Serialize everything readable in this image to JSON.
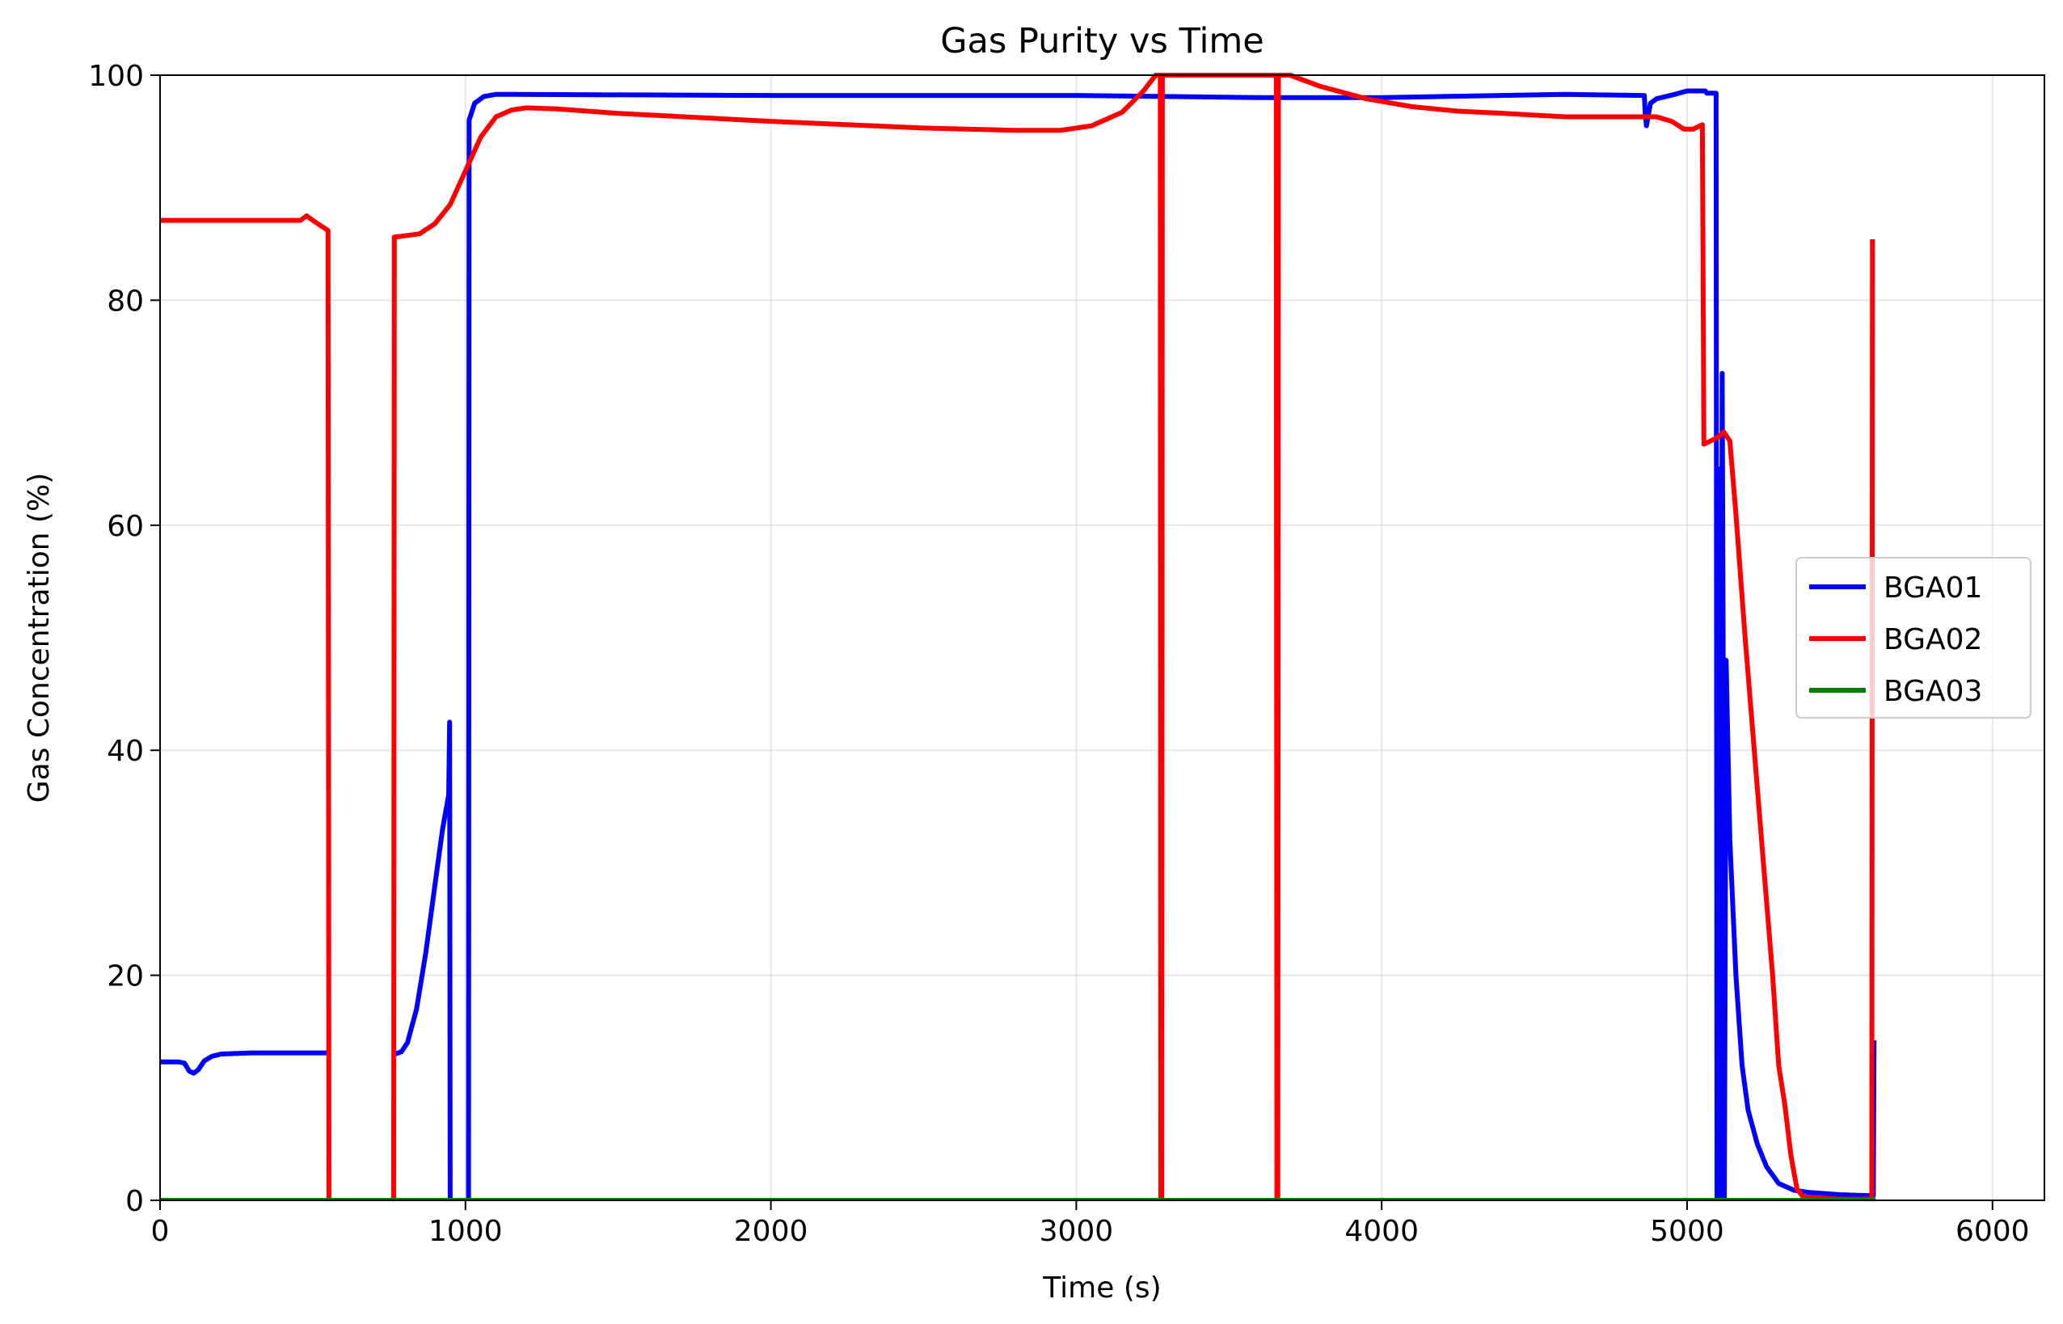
{
  "chart_data": {
    "type": "line",
    "title": "Gas Purity vs Time",
    "xlabel": "Time (s)",
    "ylabel": "Gas Concentration (%)",
    "xlim": [
      0,
      6170
    ],
    "ylim": [
      0,
      100
    ],
    "xticks": [
      0,
      1000,
      2000,
      3000,
      4000,
      5000,
      6000
    ],
    "yticks": [
      0,
      20,
      40,
      60,
      80,
      100
    ],
    "grid": true,
    "legend_position": "center-right",
    "series": [
      {
        "name": "BGA01",
        "color": "#0000ff",
        "points": [
          [
            0,
            12.3
          ],
          [
            60,
            12.3
          ],
          [
            80,
            12.2
          ],
          [
            95,
            11.5
          ],
          [
            110,
            11.3
          ],
          [
            125,
            11.6
          ],
          [
            145,
            12.4
          ],
          [
            170,
            12.8
          ],
          [
            200,
            13.0
          ],
          [
            300,
            13.1
          ],
          [
            400,
            13.1
          ],
          [
            500,
            13.1
          ],
          [
            550,
            13.1
          ],
          [
            555,
            null
          ],
          [
            765,
            null
          ],
          [
            770,
            13.0
          ],
          [
            790,
            13.2
          ],
          [
            810,
            14.0
          ],
          [
            840,
            17.0
          ],
          [
            870,
            22.0
          ],
          [
            900,
            28.0
          ],
          [
            925,
            33.0
          ],
          [
            945,
            36.0
          ],
          [
            948,
            42.5
          ],
          [
            950,
            0.0
          ],
          [
            1010,
            0.0
          ],
          [
            1012,
            96.0
          ],
          [
            1030,
            97.5
          ],
          [
            1060,
            98.1
          ],
          [
            1100,
            98.3
          ],
          [
            2000,
            98.2
          ],
          [
            3000,
            98.2
          ],
          [
            3300,
            98.1
          ],
          [
            3600,
            98.0
          ],
          [
            4000,
            98.0
          ],
          [
            4600,
            98.3
          ],
          [
            4860,
            98.2
          ],
          [
            4863,
            96.5
          ],
          [
            4867,
            95.5
          ],
          [
            4880,
            97.5
          ],
          [
            4900,
            97.9
          ],
          [
            4960,
            98.3
          ],
          [
            5000,
            98.6
          ],
          [
            5060,
            98.6
          ],
          [
            5065,
            98.4
          ],
          [
            5095,
            98.4
          ],
          [
            5098,
            0.0
          ],
          [
            5105,
            65.0
          ],
          [
            5110,
            0.0
          ],
          [
            5115,
            73.5
          ],
          [
            5118,
            50.0
          ],
          [
            5122,
            0.0
          ],
          [
            5128,
            48.0
          ],
          [
            5140,
            32.0
          ],
          [
            5160,
            20.0
          ],
          [
            5180,
            12.0
          ],
          [
            5200,
            8.0
          ],
          [
            5230,
            5.0
          ],
          [
            5260,
            3.0
          ],
          [
            5300,
            1.5
          ],
          [
            5350,
            0.9
          ],
          [
            5400,
            0.7
          ],
          [
            5500,
            0.5
          ],
          [
            5610,
            0.4
          ],
          [
            5612,
            14.0
          ]
        ]
      },
      {
        "name": "BGA02",
        "color": "#ff0000",
        "points": [
          [
            0,
            87.1
          ],
          [
            200,
            87.1
          ],
          [
            460,
            87.1
          ],
          [
            480,
            87.5
          ],
          [
            500,
            87.1
          ],
          [
            550,
            86.2
          ],
          [
            553,
            0.0
          ],
          [
            765,
            0.0
          ],
          [
            767,
            85.6
          ],
          [
            850,
            85.9
          ],
          [
            900,
            86.8
          ],
          [
            950,
            88.5
          ],
          [
            1000,
            91.5
          ],
          [
            1050,
            94.5
          ],
          [
            1100,
            96.3
          ],
          [
            1150,
            96.9
          ],
          [
            1200,
            97.1
          ],
          [
            1300,
            97.0
          ],
          [
            1500,
            96.6
          ],
          [
            2000,
            95.9
          ],
          [
            2500,
            95.3
          ],
          [
            2800,
            95.1
          ],
          [
            2950,
            95.1
          ],
          [
            3050,
            95.5
          ],
          [
            3150,
            96.7
          ],
          [
            3220,
            98.6
          ],
          [
            3260,
            100.0
          ],
          [
            3275,
            100.0
          ],
          [
            3277,
            0.0
          ],
          [
            3280,
            0.0
          ],
          [
            3282,
            100.0
          ],
          [
            3655,
            100.0
          ],
          [
            3657,
            0.0
          ],
          [
            3660,
            0.0
          ],
          [
            3662,
            100.0
          ],
          [
            3700,
            100.0
          ],
          [
            3800,
            99.0
          ],
          [
            3950,
            97.9
          ],
          [
            4100,
            97.2
          ],
          [
            4250,
            96.8
          ],
          [
            4400,
            96.6
          ],
          [
            4600,
            96.3
          ],
          [
            4900,
            96.3
          ],
          [
            4950,
            95.9
          ],
          [
            4990,
            95.2
          ],
          [
            5020,
            95.2
          ],
          [
            5050,
            95.6
          ],
          [
            5055,
            67.2
          ],
          [
            5100,
            67.8
          ],
          [
            5120,
            68.3
          ],
          [
            5140,
            67.5
          ],
          [
            5160,
            61.0
          ],
          [
            5190,
            50.0
          ],
          [
            5220,
            40.0
          ],
          [
            5250,
            30.0
          ],
          [
            5280,
            20.0
          ],
          [
            5300,
            12.0
          ],
          [
            5320,
            8.5
          ],
          [
            5340,
            4.0
          ],
          [
            5360,
            1.0
          ],
          [
            5380,
            0.3
          ],
          [
            5500,
            0.1
          ],
          [
            5605,
            0.1
          ],
          [
            5607,
            85.2
          ]
        ]
      },
      {
        "name": "BGA03",
        "color": "#008000",
        "points": [
          [
            0,
            0.0
          ],
          [
            5610,
            0.0
          ]
        ]
      }
    ]
  }
}
